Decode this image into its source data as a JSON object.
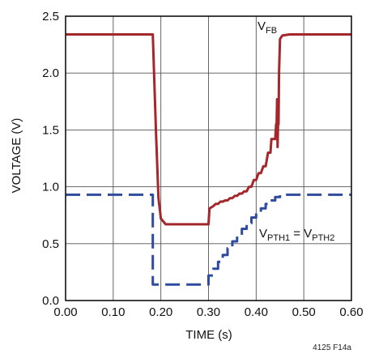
{
  "chart_data": {
    "type": "line",
    "title": "",
    "xlabel": "TIME (s)",
    "ylabel": "VOLTAGE (V)",
    "xlim": [
      0.0,
      0.6
    ],
    "ylim": [
      0.0,
      2.5
    ],
    "xticks": [
      "0.00",
      "0.10",
      "0.20",
      "0.30",
      "0.40",
      "0.50",
      "0.60"
    ],
    "yticks": [
      "0.0",
      "0.5",
      "1.0",
      "1.5",
      "2.0",
      "2.5"
    ],
    "grid": true,
    "colors": {
      "vfb": "#a5262b",
      "vpth": "#2f4b9e"
    },
    "series": [
      {
        "name": "VFB",
        "style": "solid",
        "x": [
          0.0,
          0.183,
          0.185,
          0.19,
          0.195,
          0.2,
          0.21,
          0.3,
          0.302,
          0.31,
          0.315,
          0.32,
          0.325,
          0.33,
          0.335,
          0.34,
          0.345,
          0.35,
          0.355,
          0.36,
          0.365,
          0.37,
          0.375,
          0.38,
          0.385,
          0.39,
          0.395,
          0.4,
          0.405,
          0.41,
          0.415,
          0.42,
          0.425,
          0.43,
          0.432,
          0.44,
          0.442,
          0.443,
          0.444,
          0.445,
          0.446,
          0.447,
          0.448,
          0.45,
          0.455,
          0.47,
          0.6
        ],
        "y": [
          2.34,
          2.34,
          2.1,
          1.45,
          0.9,
          0.72,
          0.67,
          0.67,
          0.81,
          0.83,
          0.85,
          0.85,
          0.87,
          0.87,
          0.88,
          0.88,
          0.9,
          0.9,
          0.92,
          0.92,
          0.94,
          0.94,
          0.96,
          0.96,
          1.0,
          1.0,
          1.06,
          1.06,
          1.12,
          1.12,
          1.18,
          1.18,
          1.3,
          1.3,
          1.42,
          1.42,
          1.55,
          1.55,
          1.77,
          1.35,
          1.55,
          1.55,
          2.0,
          2.3,
          2.33,
          2.34,
          2.34
        ]
      },
      {
        "name": "VPTH1 = VPTH2",
        "style": "dashed",
        "x": [
          0.0,
          0.183,
          0.183,
          0.3,
          0.3,
          0.31,
          0.31,
          0.32,
          0.32,
          0.33,
          0.33,
          0.34,
          0.34,
          0.35,
          0.35,
          0.36,
          0.36,
          0.37,
          0.37,
          0.38,
          0.38,
          0.39,
          0.39,
          0.4,
          0.4,
          0.41,
          0.41,
          0.42,
          0.42,
          0.43,
          0.43,
          0.44,
          0.44,
          0.45,
          0.45,
          0.6
        ],
        "y": [
          0.93,
          0.93,
          0.14,
          0.14,
          0.22,
          0.22,
          0.28,
          0.28,
          0.34,
          0.34,
          0.4,
          0.4,
          0.46,
          0.46,
          0.52,
          0.52,
          0.57,
          0.57,
          0.63,
          0.63,
          0.68,
          0.68,
          0.73,
          0.73,
          0.77,
          0.77,
          0.81,
          0.81,
          0.85,
          0.85,
          0.88,
          0.88,
          0.91,
          0.91,
          0.93,
          0.93
        ]
      }
    ],
    "annotations": {
      "vfb": {
        "main": "V",
        "sub": "FB"
      },
      "vpth": {
        "main1": "V",
        "sub1": "PTH1",
        "eq": " = V",
        "sub2": "PTH2"
      }
    },
    "figure_id": "4125 F14a"
  }
}
